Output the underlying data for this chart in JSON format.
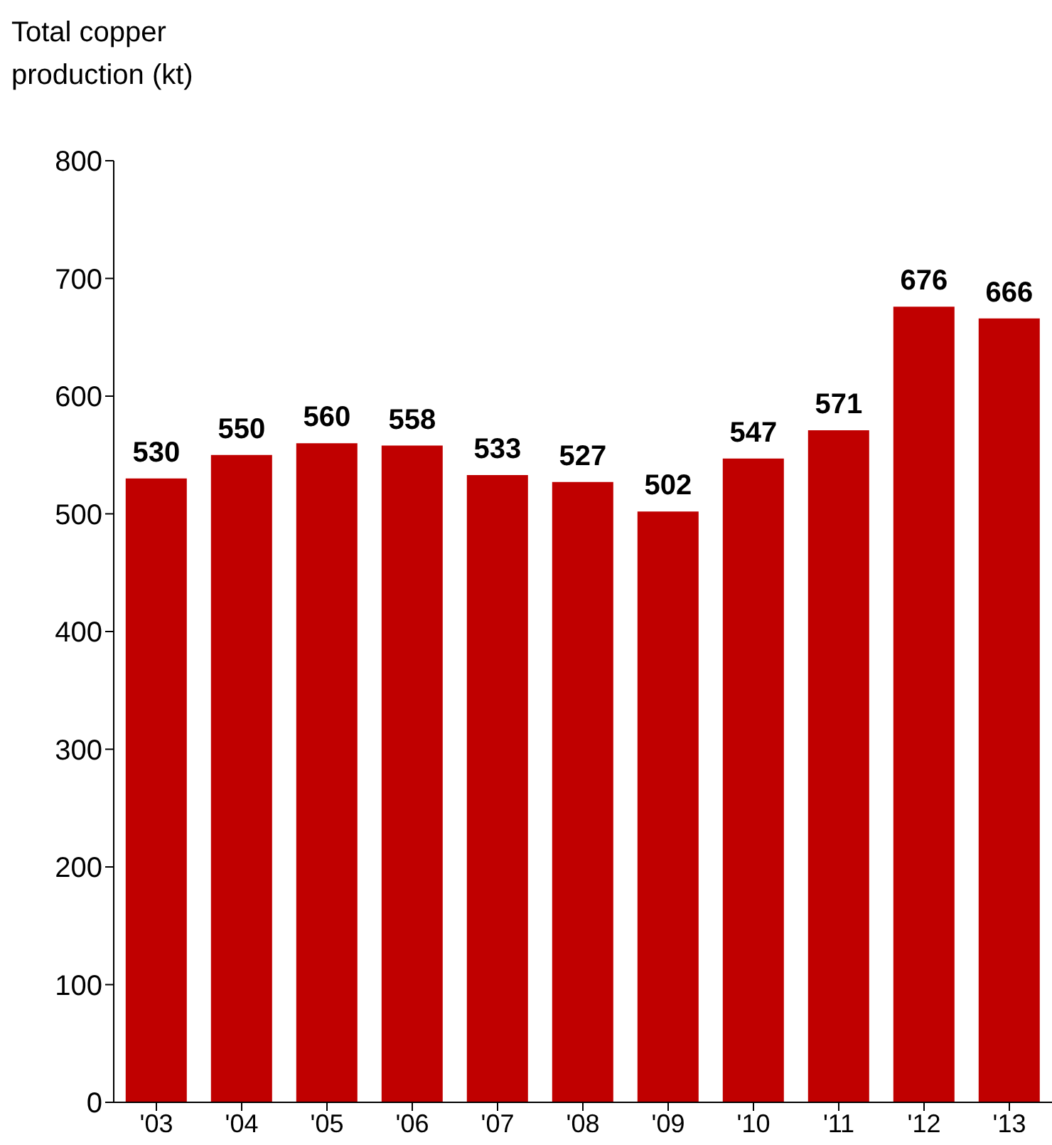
{
  "chart_data": {
    "type": "bar",
    "ylabel": "Total copper production (kt)",
    "categories": [
      "'03",
      "'04",
      "'05",
      "'06",
      "'07",
      "'08",
      "'09",
      "'10",
      "'11",
      "'12",
      "'13"
    ],
    "values": [
      530,
      550,
      560,
      558,
      533,
      527,
      502,
      547,
      571,
      676,
      666
    ],
    "color": "#c00000",
    "ylim": [
      0,
      800
    ],
    "yticks": [
      0,
      100,
      200,
      300,
      400,
      500,
      600,
      700,
      800
    ],
    "grid": false,
    "data_labels": true
  }
}
